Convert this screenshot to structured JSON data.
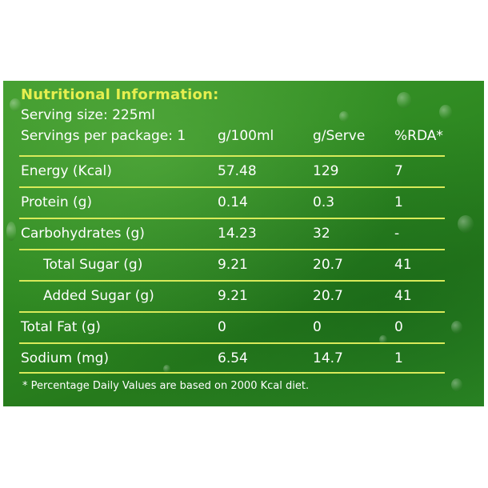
{
  "label": {
    "title": "Nutritional Information:",
    "serving_size": "Serving size: 225ml",
    "header": {
      "servings": "Servings per package: 1",
      "col_g100": "g/100ml",
      "col_serve": "g/Serve",
      "col_rda": "%RDA*"
    },
    "rows": [
      {
        "name": "Energy (Kcal)",
        "g100": "57.48",
        "serve": "129",
        "rda": "7"
      },
      {
        "name": "Protein (g)",
        "g100": "0.14",
        "serve": "0.3",
        "rda": "1"
      },
      {
        "name": "Carbohydrates (g)",
        "g100": "14.23",
        "serve": "32",
        "rda": "-"
      },
      {
        "name": "Total Sugar (g)",
        "g100": "9.21",
        "serve": "20.7",
        "rda": "41"
      },
      {
        "name": "Added Sugar (g)",
        "g100": "9.21",
        "serve": "20.7",
        "rda": "41"
      },
      {
        "name": "Total Fat (g)",
        "g100": "0",
        "serve": "0",
        "rda": "0"
      },
      {
        "name": "Sodium (mg)",
        "g100": "6.54",
        "serve": "14.7",
        "rda": "1"
      }
    ],
    "footnote": "* Percentage Daily Values are based on 2000 Kcal diet.",
    "colors": {
      "background": "#2f8a22",
      "title": "#e6ef4f",
      "divider": "#d9ea5a",
      "text": "#ffffff"
    }
  }
}
